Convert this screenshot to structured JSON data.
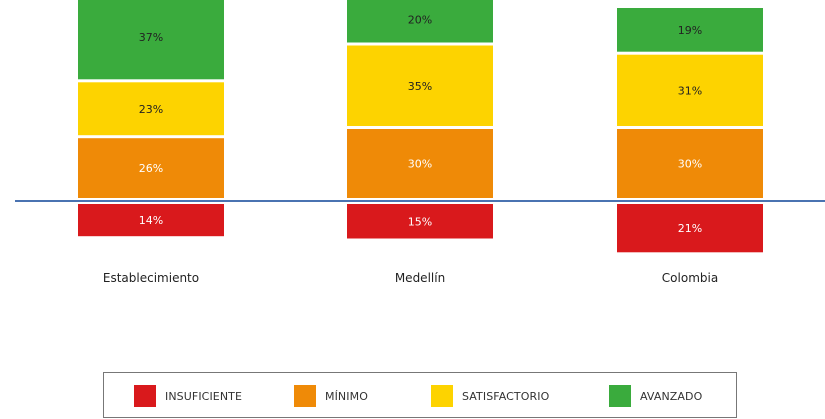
{
  "colors": {
    "INSUFICIENTE": "#d9191c",
    "MINIMO": "#ef8a07",
    "SATISFACTORIO": "#fdd300",
    "AVANZADO": "#3aab3d",
    "baseline": "#4a73b1"
  },
  "chart_data": {
    "type": "bar",
    "stacked": true,
    "diverging": true,
    "categories": [
      "Establecimiento",
      "Medellín",
      "Colombia"
    ],
    "series": [
      {
        "name": "INSUFICIENTE",
        "values": [
          14,
          15,
          21
        ],
        "labels": [
          "14%",
          "15%",
          "21%"
        ]
      },
      {
        "name": "MÍNIMO",
        "values": [
          26,
          30,
          30
        ],
        "labels": [
          "26%",
          "30%",
          "30%"
        ]
      },
      {
        "name": "SATISFACTORIO",
        "values": [
          23,
          35,
          31
        ],
        "labels": [
          "23%",
          "35%",
          "31%"
        ]
      },
      {
        "name": "AVANZADO",
        "values": [
          37,
          20,
          19
        ],
        "labels": [
          "37%",
          "20%",
          "19%"
        ]
      }
    ],
    "below_baseline": [
      "INSUFICIENTE"
    ],
    "legend_position": "bottom"
  },
  "legend": [
    {
      "key": "INSUFICIENTE",
      "label": "INSUFICIENTE"
    },
    {
      "key": "MINIMO",
      "label": "MÍNIMO"
    },
    {
      "key": "SATISFACTORIO",
      "label": "SATISFACTORIO"
    },
    {
      "key": "AVANZADO",
      "label": "AVANZADO"
    }
  ]
}
